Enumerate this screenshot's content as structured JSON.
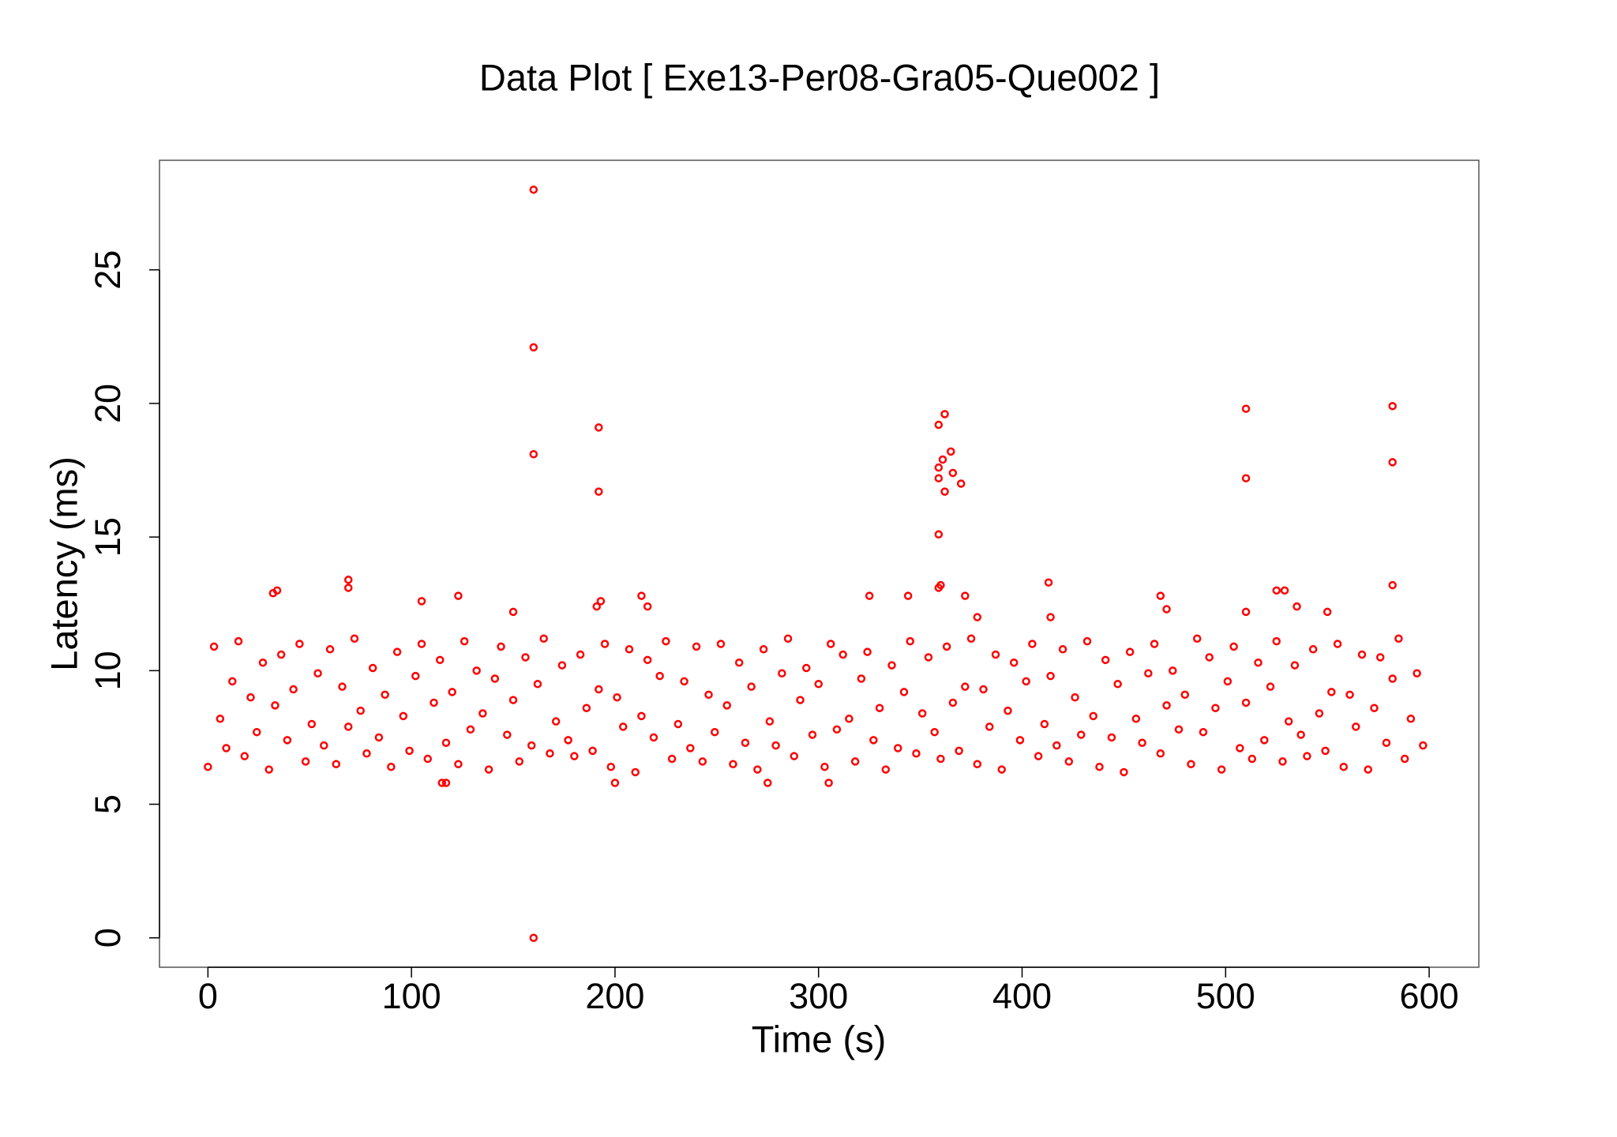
{
  "chart_data": {
    "type": "scatter",
    "title": "Data Plot [ Exe13-Per08-Gra05-Que002 ]",
    "x_label": "Time (s)",
    "y_label": "Latency (ms)",
    "color": "#ff0000",
    "xlim": [
      -23.8,
      624.4
    ],
    "ylim": [
      -1.1,
      29.1
    ],
    "xticks": [
      0,
      100,
      200,
      300,
      400,
      500,
      600
    ],
    "yticks": [
      0,
      5,
      10,
      15,
      20,
      25
    ],
    "x": [
      0,
      3,
      6,
      9,
      12,
      15,
      18,
      21,
      24,
      27,
      30,
      33,
      36,
      39,
      42,
      45,
      48,
      51,
      54,
      57,
      60,
      63,
      66,
      69,
      72,
      75,
      78,
      81,
      84,
      87,
      90,
      93,
      96,
      99,
      102,
      105,
      108,
      111,
      114,
      117,
      120,
      123,
      126,
      129,
      132,
      135,
      138,
      141,
      144,
      147,
      150,
      153,
      156,
      159,
      162,
      165,
      168,
      171,
      174,
      177,
      180,
      183,
      186,
      189,
      192,
      195,
      198,
      201,
      204,
      207,
      210,
      213,
      216,
      219,
      222,
      225,
      228,
      231,
      234,
      237,
      240,
      243,
      246,
      249,
      252,
      255,
      258,
      261,
      264,
      267,
      270,
      273,
      276,
      279,
      282,
      285,
      288,
      291,
      294,
      297,
      300,
      303,
      306,
      309,
      312,
      315,
      318,
      321,
      324,
      327,
      330,
      333,
      336,
      339,
      342,
      345,
      348,
      351,
      354,
      357,
      360,
      363,
      366,
      369,
      372,
      375,
      378,
      381,
      384,
      387,
      390,
      393,
      396,
      399,
      402,
      405,
      408,
      411,
      414,
      417,
      420,
      423,
      426,
      429,
      432,
      435,
      438,
      441,
      444,
      447,
      450,
      453,
      456,
      459,
      462,
      465,
      468,
      471,
      474,
      477,
      480,
      483,
      486,
      489,
      492,
      495,
      498,
      501,
      504,
      507,
      510,
      513,
      516,
      519,
      522,
      525,
      528,
      531,
      534,
      537,
      540,
      543,
      546,
      549,
      552,
      555,
      558,
      561,
      564,
      567,
      570,
      573,
      576,
      579,
      582,
      585,
      588,
      591,
      594,
      597,
      160,
      160,
      160,
      160,
      192,
      192,
      359,
      362,
      361,
      365,
      359,
      359,
      362,
      366,
      370,
      359,
      359,
      360,
      510,
      510,
      582,
      582,
      582,
      69,
      69,
      32,
      34,
      105,
      123,
      150,
      193,
      191,
      213,
      216,
      325,
      344,
      372,
      378,
      413,
      414,
      468,
      471,
      525,
      529,
      535,
      550,
      510,
      115,
      117,
      200,
      275,
      305
    ],
    "values": [
      6.4,
      10.9,
      8.2,
      7.1,
      9.6,
      11.1,
      6.8,
      9.0,
      7.7,
      10.3,
      6.3,
      8.7,
      10.6,
      7.4,
      9.3,
      11.0,
      6.6,
      8.0,
      9.9,
      7.2,
      10.8,
      6.5,
      9.4,
      7.9,
      11.2,
      8.5,
      6.9,
      10.1,
      7.5,
      9.1,
      6.4,
      10.7,
      8.3,
      7.0,
      9.8,
      11.0,
      6.7,
      8.8,
      10.4,
      7.3,
      9.2,
      6.5,
      11.1,
      7.8,
      10.0,
      8.4,
      6.3,
      9.7,
      10.9,
      7.6,
      8.9,
      6.6,
      10.5,
      7.2,
      9.5,
      11.2,
      6.9,
      8.1,
      10.2,
      7.4,
      6.8,
      10.6,
      8.6,
      7.0,
      9.3,
      11.0,
      6.4,
      9.0,
      7.9,
      10.8,
      6.2,
      8.3,
      10.4,
      7.5,
      9.8,
      11.1,
      6.7,
      8.0,
      9.6,
      7.1,
      10.9,
      6.6,
      9.1,
      7.7,
      11.0,
      8.7,
      6.5,
      10.3,
      7.3,
      9.4,
      6.3,
      10.8,
      8.1,
      7.2,
      9.9,
      11.2,
      6.8,
      8.9,
      10.1,
      7.6,
      9.5,
      6.4,
      11.0,
      7.8,
      10.6,
      8.2,
      6.6,
      9.7,
      10.7,
      7.4,
      8.6,
      6.3,
      10.2,
      7.1,
      9.2,
      11.1,
      6.9,
      8.4,
      10.5,
      7.7,
      6.7,
      10.9,
      8.8,
      7.0,
      9.4,
      11.2,
      6.5,
      9.3,
      7.9,
      10.6,
      6.3,
      8.5,
      10.3,
      7.4,
      9.6,
      11.0,
      6.8,
      8.0,
      9.8,
      7.2,
      10.8,
      6.6,
      9.0,
      7.6,
      11.1,
      8.3,
      6.4,
      10.4,
      7.5,
      9.5,
      6.2,
      10.7,
      8.2,
      7.3,
      9.9,
      11.0,
      6.9,
      8.7,
      10.0,
      7.8,
      9.1,
      6.5,
      11.2,
      7.7,
      10.5,
      8.6,
      6.3,
      9.6,
      10.9,
      7.1,
      8.8,
      6.7,
      10.3,
      7.4,
      9.4,
      11.1,
      6.6,
      8.1,
      10.2,
      7.6,
      6.8,
      10.8,
      8.4,
      7.0,
      9.2,
      11.0,
      6.4,
      9.1,
      7.9,
      10.6,
      6.3,
      8.6,
      10.5,
      7.3,
      9.7,
      11.2,
      6.7,
      8.2,
      9.9,
      7.2,
      28.0,
      22.1,
      18.1,
      0,
      19.1,
      16.7,
      19.2,
      19.6,
      17.9,
      18.2,
      17.6,
      17.2,
      16.7,
      17.4,
      17.0,
      15.1,
      13.1,
      13.2,
      19.8,
      17.2,
      19.9,
      17.8,
      13.2,
      13.4,
      13.1,
      12.9,
      13.0,
      12.6,
      12.8,
      12.2,
      12.6,
      12.4,
      12.8,
      12.4,
      12.8,
      12.8,
      12.8,
      12.0,
      13.3,
      12.0,
      12.8,
      12.3,
      13.0,
      13.0,
      12.4,
      12.2,
      12.2,
      5.8,
      5.8,
      5.8,
      5.8,
      5.8
    ]
  }
}
